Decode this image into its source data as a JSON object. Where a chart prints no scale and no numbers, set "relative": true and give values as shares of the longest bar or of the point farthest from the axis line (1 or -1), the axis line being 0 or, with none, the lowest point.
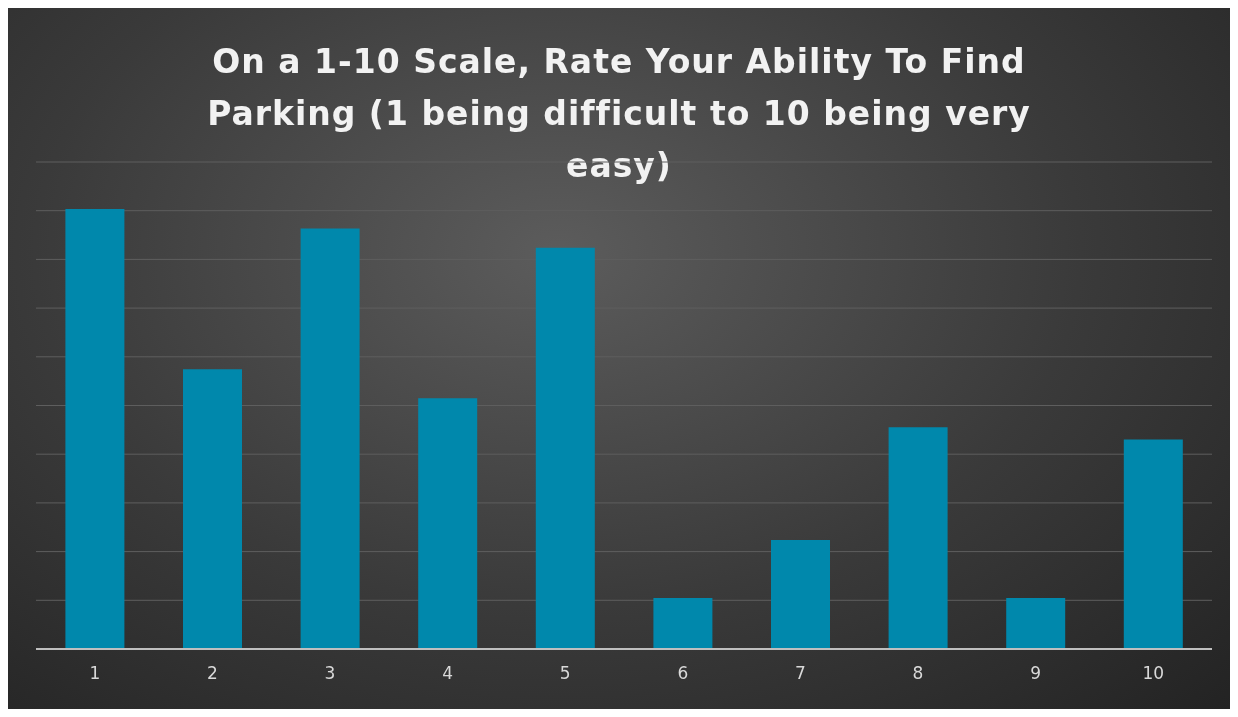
{
  "chart_data": {
    "type": "bar",
    "title": "On a 1-10 Scale, Rate Your Ability To Find Parking (1 being difficult to 10 being very easy)",
    "categories": [
      "1",
      "2",
      "3",
      "4",
      "5",
      "6",
      "7",
      "8",
      "9",
      "10"
    ],
    "values": [
      1,
      0.636,
      0.956,
      0.57,
      0.912,
      0.116,
      0.248,
      0.504,
      0.116,
      0.476
    ],
    "color": "#0088ac",
    "relative": true,
    "grid": true
  }
}
